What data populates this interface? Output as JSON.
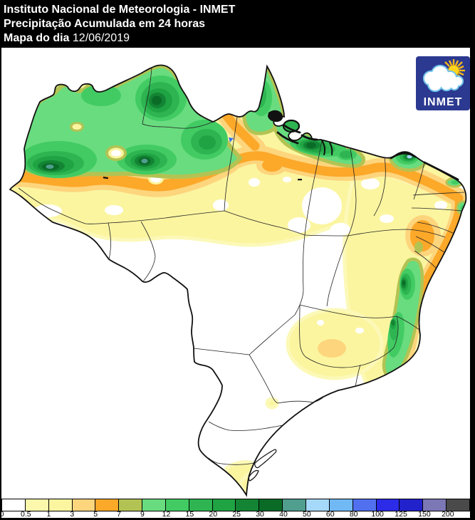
{
  "header": {
    "title": "Instituto Nacional de Meteorologia - INMET",
    "subtitle": "Precipitação Acumulada em 24 horas",
    "map_label": "Mapa do dia",
    "date": "12/06/2019"
  },
  "logo": {
    "text": "INMET",
    "background": "#2B3990"
  },
  "legend": {
    "unit_labels": [
      "0",
      "0.5",
      "1",
      "3",
      "5",
      "7",
      "9",
      "12",
      "15",
      "20",
      "25",
      "30",
      "40",
      "50",
      "60",
      "80",
      "100",
      "125",
      "150",
      "200"
    ],
    "colors": [
      "#FFFFFF",
      "#FBF8AC",
      "#FBF5A0",
      "#FDD57D",
      "#FCA829",
      "#B3C353",
      "#68DC7F",
      "#42CB63",
      "#2EB552",
      "#1FA343",
      "#138434",
      "#0A6B27",
      "#4F9E8E",
      "#A6D8FA",
      "#70B9F5",
      "#5070F0",
      "#2B2BE8",
      "#2222CC",
      "#7C77B5",
      "#4A4A4A"
    ]
  }
}
